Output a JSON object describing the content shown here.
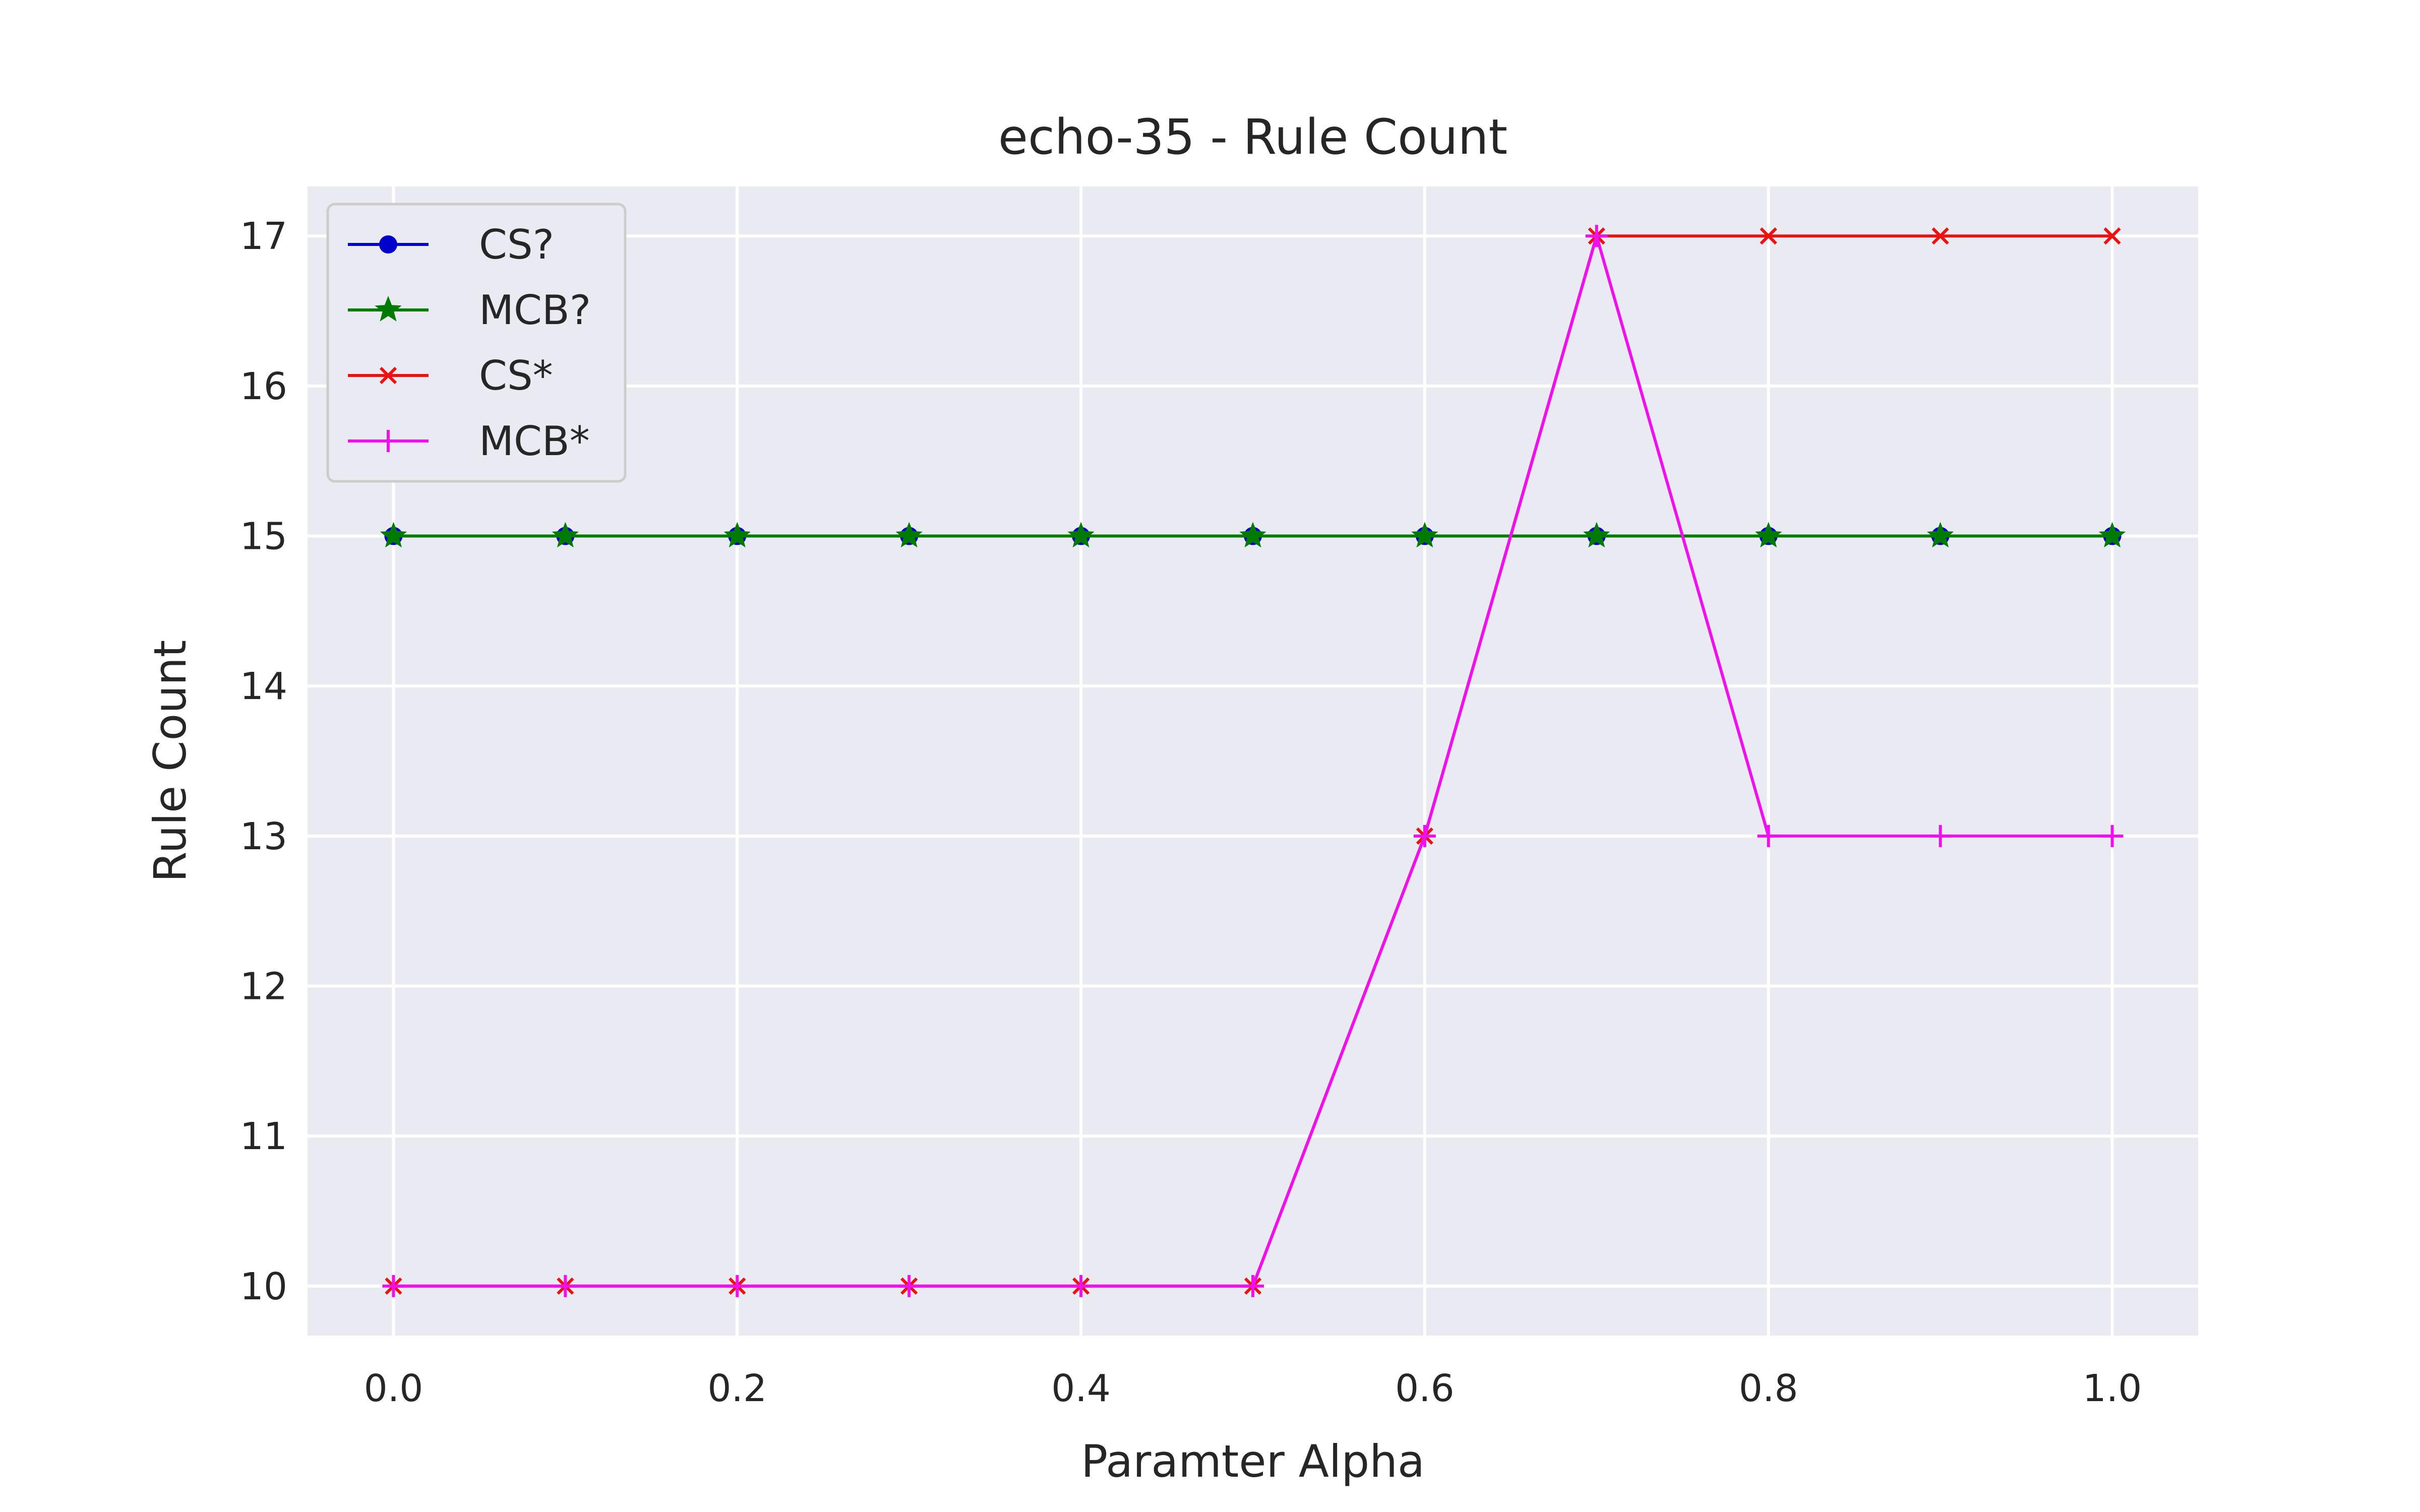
{
  "chart_data": {
    "type": "line",
    "title": "echo-35 - Rule Count",
    "xlabel": "Paramter Alpha",
    "ylabel": "Rule Count",
    "xlim": [
      -0.05,
      1.05
    ],
    "ylim": [
      9.67,
      17.33
    ],
    "grid": true,
    "legend_position": "top-left",
    "x_ticks": [
      "0.0",
      "0.2",
      "0.4",
      "0.6",
      "0.8",
      "1.0"
    ],
    "y_ticks": [
      "10",
      "11",
      "12",
      "13",
      "14",
      "15",
      "16",
      "17"
    ],
    "x": [
      0.0,
      0.1,
      0.2,
      0.3,
      0.4,
      0.5,
      0.6,
      0.7,
      0.8,
      0.9,
      1.0
    ],
    "series": [
      {
        "name": "CS?",
        "color": "#0000cc",
        "marker": "circle",
        "values": [
          15,
          15,
          15,
          15,
          15,
          15,
          15,
          15,
          15,
          15,
          15
        ]
      },
      {
        "name": "MCB?",
        "color": "#007a00",
        "marker": "star",
        "values": [
          15,
          15,
          15,
          15,
          15,
          15,
          15,
          15,
          15,
          15,
          15
        ]
      },
      {
        "name": "CS*",
        "color": "#ee1111",
        "marker": "x",
        "values": [
          10,
          10,
          10,
          10,
          10,
          10,
          13,
          17,
          17,
          17,
          17
        ]
      },
      {
        "name": "MCB*",
        "color": "#ee11ee",
        "marker": "plus",
        "values": [
          10,
          10,
          10,
          10,
          10,
          10,
          13,
          17,
          13,
          13,
          13
        ]
      }
    ],
    "colors": {
      "plot_background": "#eaeaf2",
      "grid": "#ffffff",
      "text": "#262626"
    }
  }
}
